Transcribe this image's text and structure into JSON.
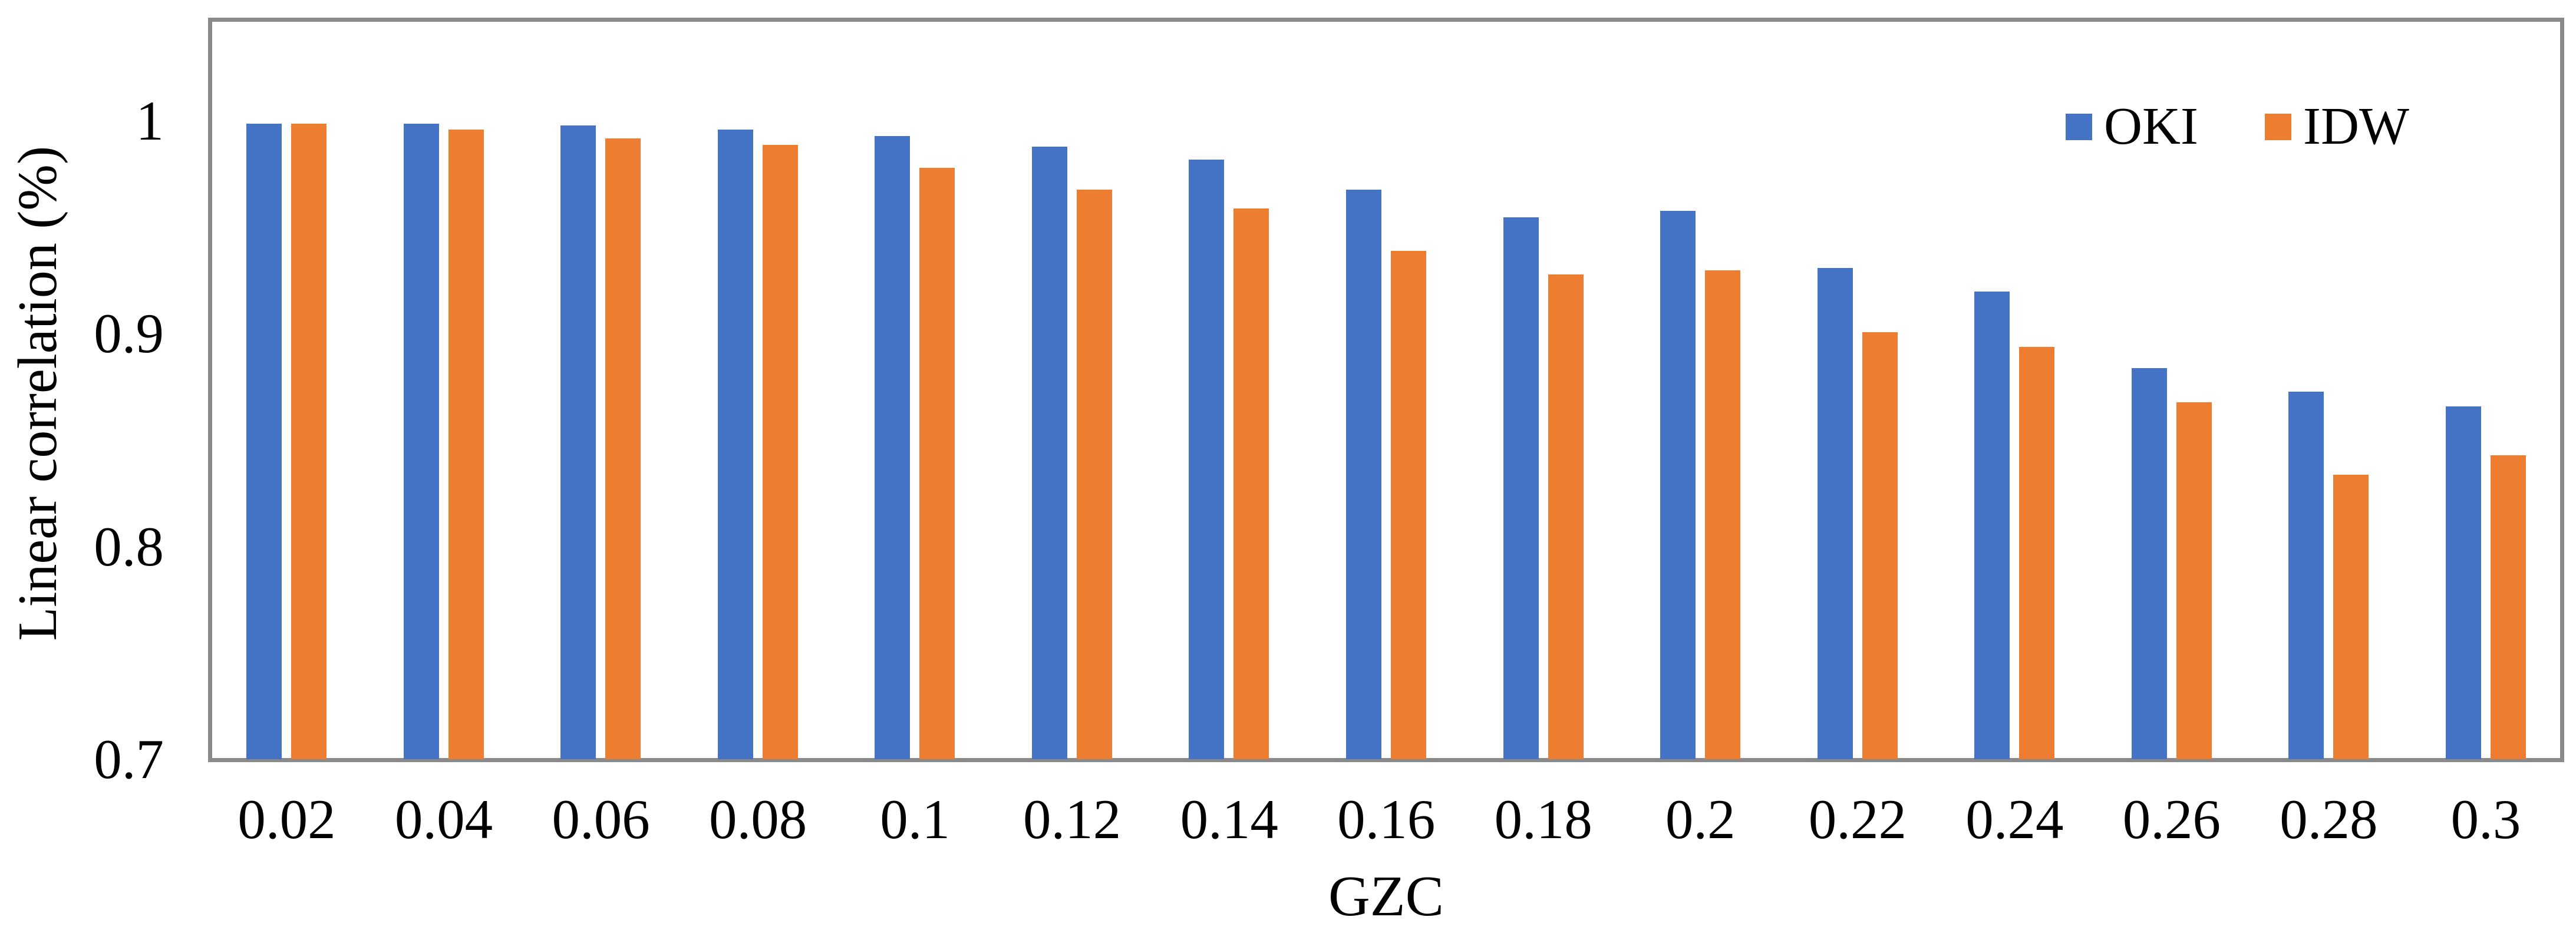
{
  "chart_data": {
    "type": "bar",
    "title": "",
    "xlabel": "GZC",
    "ylabel": "Linear correlation (%)",
    "categories": [
      "0.02",
      "0.04",
      "0.06",
      "0.08",
      "0.1",
      "0.12",
      "0.14",
      "0.16",
      "0.18",
      "0.2",
      "0.22",
      "0.24",
      "0.26",
      "0.28",
      "0.3"
    ],
    "series": [
      {
        "name": "OKI",
        "color": "#4472C4",
        "values": [
          0.999,
          0.999,
          0.998,
          0.996,
          0.993,
          0.988,
          0.982,
          0.968,
          0.955,
          0.958,
          0.931,
          0.92,
          0.884,
          0.873,
          0.866
        ]
      },
      {
        "name": "IDW",
        "color": "#ED7D31",
        "values": [
          0.999,
          0.996,
          0.992,
          0.989,
          0.978,
          0.968,
          0.959,
          0.939,
          0.928,
          0.93,
          0.901,
          0.894,
          0.868,
          0.834,
          0.843
        ]
      }
    ],
    "yticks": [
      {
        "label": "1",
        "value": 1.0
      },
      {
        "label": "0.9",
        "value": 0.9
      },
      {
        "label": "0.8",
        "value": 0.8
      },
      {
        "label": "0.7",
        "value": 0.7
      }
    ],
    "ylim": [
      0.7,
      1.049
    ],
    "grid": false,
    "legend_position": "top-right",
    "axis_color": "#8A8A8A",
    "background": "#FFFFFF"
  }
}
